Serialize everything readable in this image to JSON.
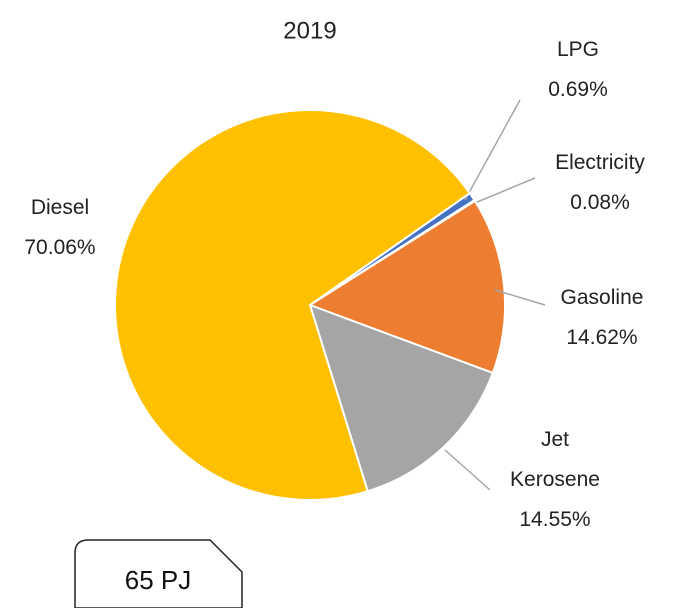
{
  "chart_data": {
    "type": "pie",
    "title": "2019",
    "categories": [
      "LPG",
      "Electricity",
      "Gasoline",
      "Jet Kerosene",
      "Diesel"
    ],
    "values": [
      0.69,
      0.08,
      14.62,
      14.55,
      70.06
    ],
    "value_labels": [
      "0.69%",
      "0.08%",
      "14.62%",
      "14.55%",
      "70.06%"
    ],
    "colors": [
      "#4472c4",
      "#5b9bd5",
      "#ed7d31",
      "#a5a5a5",
      "#ffc000"
    ],
    "annotation": "65 PJ"
  }
}
